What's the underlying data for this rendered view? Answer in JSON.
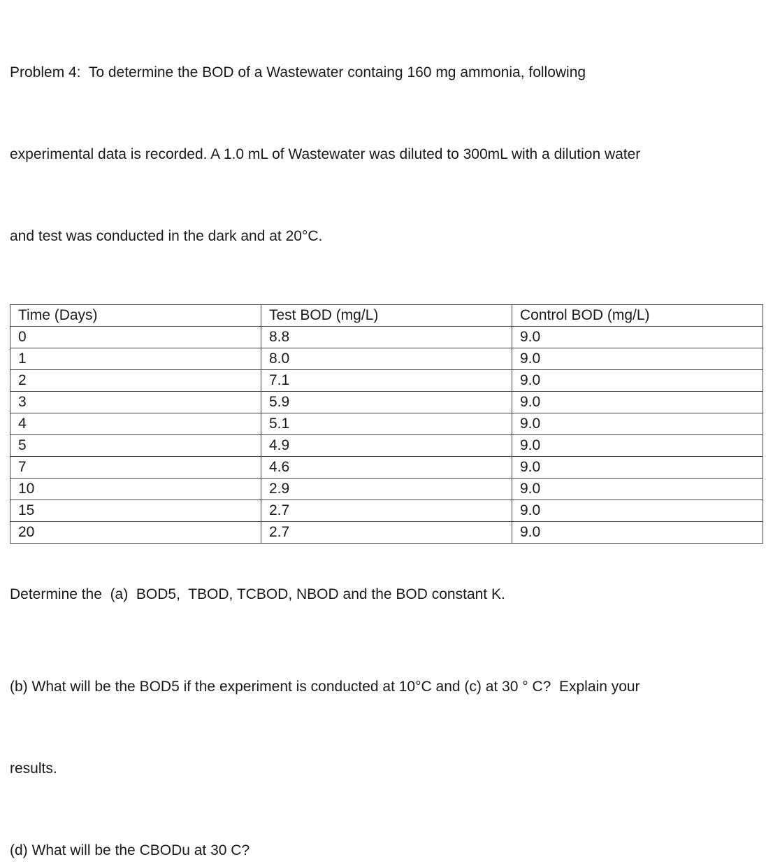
{
  "page": {
    "background_color": "#ffffff",
    "text_color": "#1a1a1a",
    "table_border_color": "#474747"
  },
  "intro": {
    "lines": [
      "Problem 4:  To determine the BOD of a Wastewater containg 160 mg ammonia, following",
      "experimental data is recorded. A 1.0 mL of Wastewater was diluted to 300mL with a dilution water",
      "and test was conducted in the dark and at 20°C."
    ]
  },
  "table": {
    "headers": [
      "Time (Days)",
      "Test BOD (mg/L)",
      "Control BOD (mg/L)"
    ],
    "rows": [
      [
        "0",
        "8.8",
        "9.0"
      ],
      [
        "1",
        "8.0",
        "9.0"
      ],
      [
        "2",
        "7.1",
        "9.0"
      ],
      [
        "3",
        "5.9",
        "9.0"
      ],
      [
        "4",
        "5.1",
        "9.0"
      ],
      [
        "5",
        "4.9",
        "9.0"
      ],
      [
        "7",
        "4.6",
        "9.0"
      ],
      [
        "10",
        "2.9",
        "9.0"
      ],
      [
        "15",
        "2.7",
        "9.0"
      ],
      [
        "20",
        "2.7",
        "9.0"
      ]
    ]
  },
  "questions": {
    "part_a": "Determine the  (a)  BOD5,  TBOD, TCBOD, NBOD and the BOD constant K.",
    "part_bc_lines": [
      "(b) What will be the BOD5 if the experiment is conducted at 10°C and (c) at 30 ° C?  Explain your",
      "results."
    ],
    "part_d": "(d) What will be the CBODu at 30 C?"
  }
}
